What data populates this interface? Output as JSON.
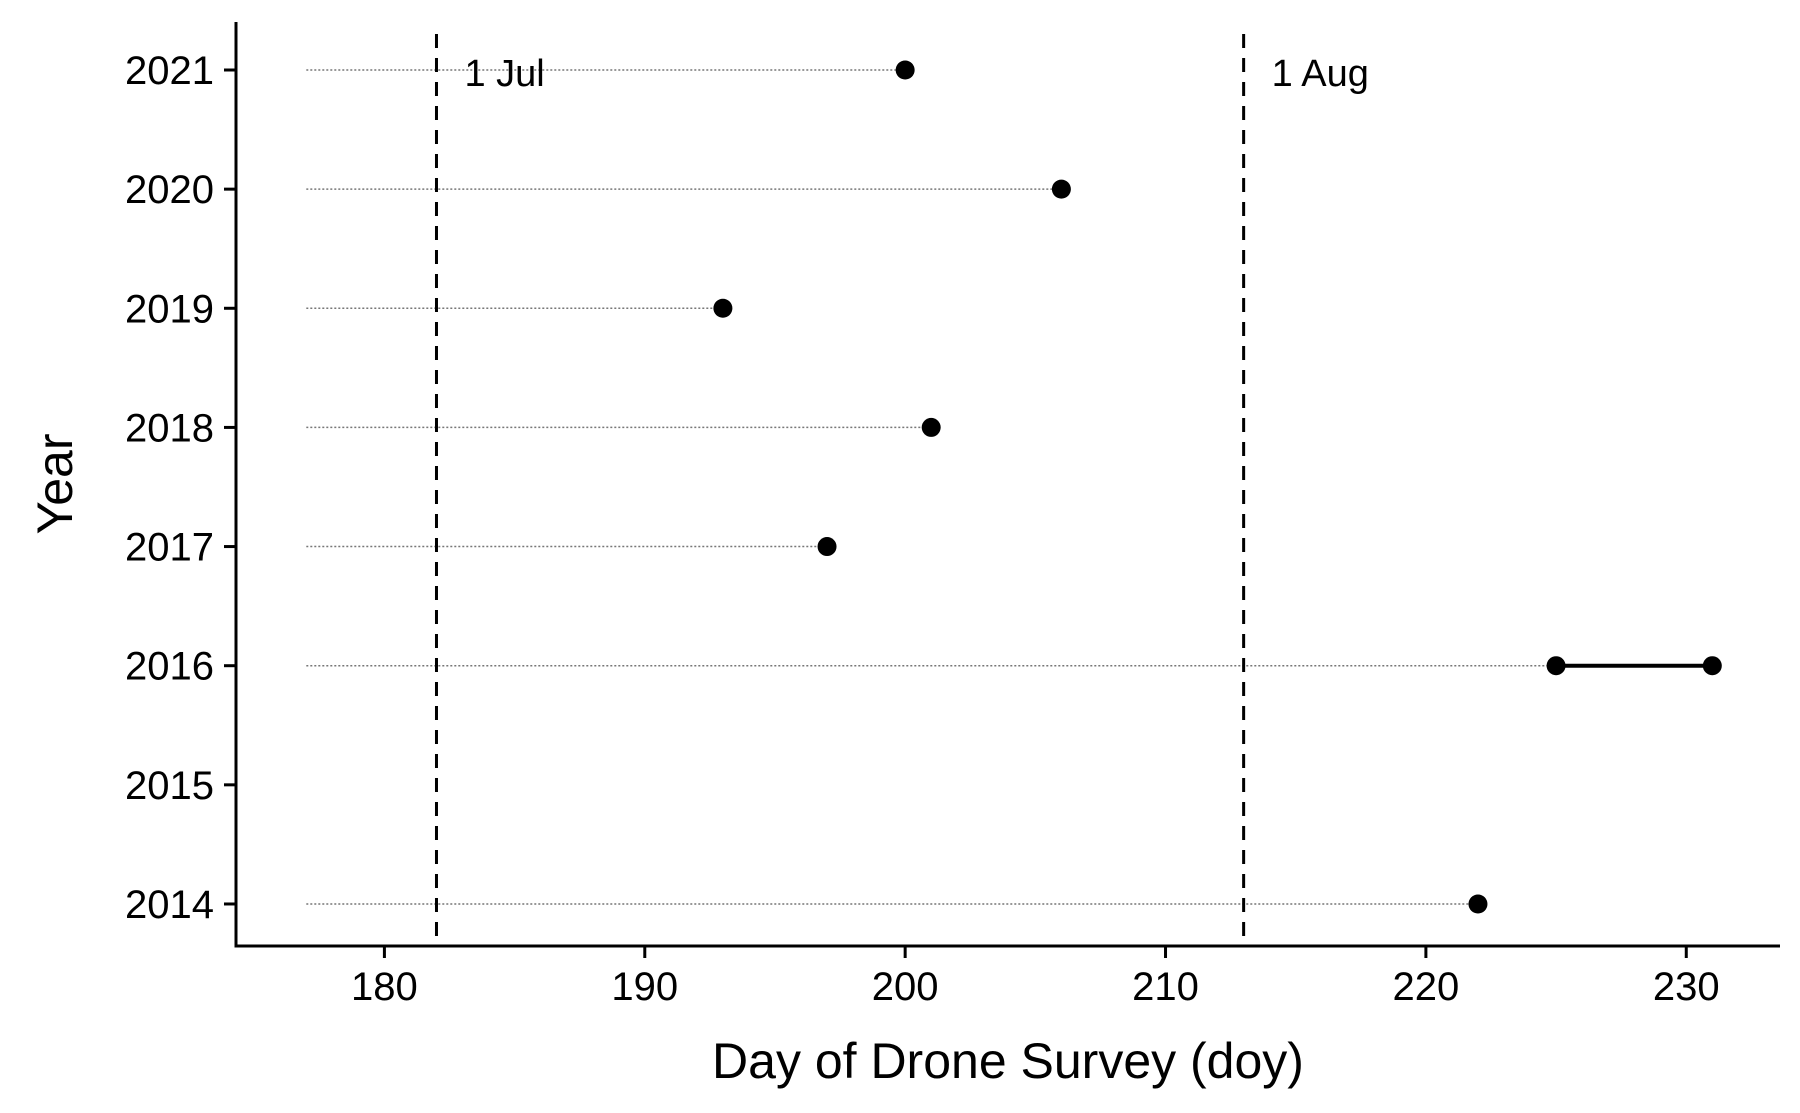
{
  "chart_data": {
    "type": "scatter",
    "title": "",
    "xlabel": "Day of Drone Survey (doy)",
    "ylabel": "Year",
    "xlim": [
      174.3,
      233.6
    ],
    "xticks": [
      180,
      190,
      200,
      210,
      220,
      230
    ],
    "x_tick_labels": [
      "180",
      "190",
      "200",
      "210",
      "220",
      "230"
    ],
    "years": [
      "2021",
      "2020",
      "2019",
      "2018",
      "2017",
      "2016",
      "2015",
      "2014"
    ],
    "guide_line_start": 177,
    "points": [
      {
        "year": "2021",
        "days": [
          200
        ]
      },
      {
        "year": "2020",
        "days": [
          206
        ]
      },
      {
        "year": "2019",
        "days": [
          193
        ]
      },
      {
        "year": "2018",
        "days": [
          201
        ]
      },
      {
        "year": "2017",
        "days": [
          197
        ]
      },
      {
        "year": "2016",
        "days": [
          225,
          231
        ]
      },
      {
        "year": "2015",
        "days": []
      },
      {
        "year": "2014",
        "days": [
          222
        ]
      }
    ],
    "reference_lines": [
      {
        "x": 182,
        "label": "1 Jul"
      },
      {
        "x": 213,
        "label": "1 Aug"
      }
    ],
    "grid": false,
    "colors": {
      "points": "#000000",
      "guides": "#777777",
      "reference": "#000000"
    }
  }
}
